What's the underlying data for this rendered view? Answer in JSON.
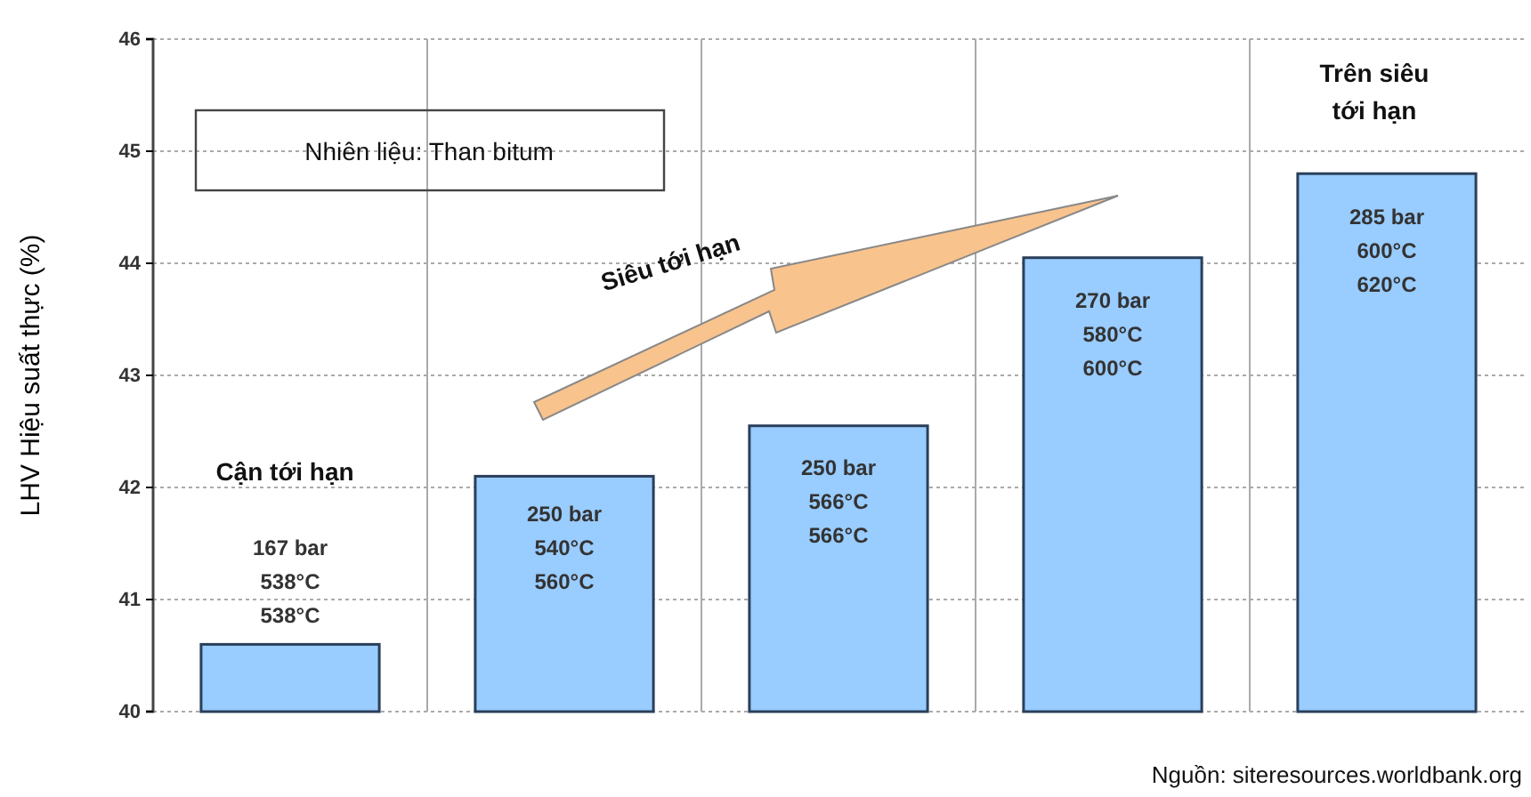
{
  "chart_data": {
    "type": "bar",
    "categories": [
      null,
      null,
      null,
      null,
      null
    ],
    "values": [
      40.6,
      42.1,
      42.55,
      44.05,
      44.8
    ],
    "color": "#99ccff",
    "ylabel": "LHV Hiệu suất thực (%)",
    "ylim": [
      40,
      46
    ],
    "yticks": [
      40,
      41,
      42,
      43,
      44,
      45,
      46
    ],
    "grid": true,
    "annotations": [
      "167 bar\n538°C\n538°C",
      "250 bar\n540°C\n560°C",
      "250 bar\n566°C\n566°C",
      "270 bar\n580°C\n600°C",
      "285 bar\n600°C\n620°C",
      "Nhiên liệu: Than bitum",
      "Siêu tới hạn",
      "Cận tới hạn",
      "Trên siêu\ntới hạn",
      "Nguồn: siteresources.worldbank.org"
    ]
  }
}
